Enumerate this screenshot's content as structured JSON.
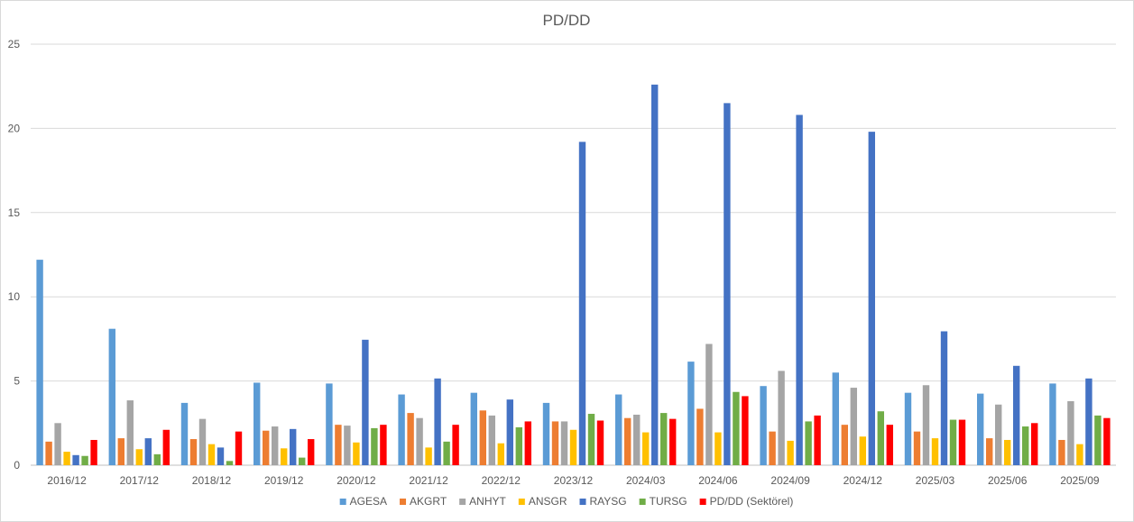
{
  "chart_data": {
    "type": "bar",
    "title": "PD/DD",
    "xlabel": "",
    "ylabel": "",
    "ylim": [
      0,
      25
    ],
    "yticks": [
      "0",
      "5",
      "10",
      "15",
      "20",
      "25"
    ],
    "grid": true,
    "legend_position": "bottom",
    "categories": [
      "2016/12",
      "2017/12",
      "2018/12",
      "2019/12",
      "2020/12",
      "2021/12",
      "2022/12",
      "2023/12",
      "2024/03",
      "2024/06",
      "2024/09",
      "2024/12",
      "2025/03",
      "2025/06",
      "2025/09"
    ],
    "series": [
      {
        "name": "AGESA",
        "color": "#5b9bd5",
        "values": [
          12.2,
          8.1,
          3.7,
          4.9,
          4.85,
          4.2,
          4.3,
          3.7,
          4.2,
          6.15,
          4.7,
          5.5,
          4.3,
          4.25,
          4.85
        ]
      },
      {
        "name": "AKGRT",
        "color": "#ed7d31",
        "values": [
          1.4,
          1.6,
          1.55,
          2.05,
          2.4,
          3.1,
          3.25,
          2.6,
          2.8,
          3.35,
          2.0,
          2.4,
          2.0,
          1.6,
          1.5
        ]
      },
      {
        "name": "ANHYT",
        "color": "#a5a5a5",
        "values": [
          2.5,
          3.85,
          2.75,
          2.3,
          2.35,
          2.8,
          2.95,
          2.6,
          3.0,
          7.2,
          5.6,
          4.6,
          4.75,
          3.6,
          3.8
        ]
      },
      {
        "name": "ANSGR",
        "color": "#ffc000",
        "values": [
          0.8,
          0.95,
          1.25,
          1.0,
          1.35,
          1.05,
          1.3,
          2.1,
          1.95,
          1.95,
          1.45,
          1.7,
          1.6,
          1.5,
          1.25
        ]
      },
      {
        "name": "RAYSG",
        "color": "#4472c4",
        "values": [
          0.6,
          1.6,
          1.05,
          2.15,
          7.45,
          5.15,
          3.9,
          19.2,
          22.6,
          21.5,
          20.8,
          19.8,
          7.95,
          5.9,
          5.15
        ]
      },
      {
        "name": "TURSG",
        "color": "#70ad47",
        "values": [
          0.55,
          0.65,
          0.25,
          0.45,
          2.2,
          1.4,
          2.25,
          3.05,
          3.1,
          4.35,
          2.6,
          3.2,
          2.7,
          2.3,
          2.95
        ]
      },
      {
        "name": "PD/DD (Sektörel)",
        "color": "#ff0000",
        "values": [
          1.5,
          2.1,
          2.0,
          1.55,
          2.4,
          2.4,
          2.6,
          2.65,
          2.75,
          4.1,
          2.95,
          2.4,
          2.7,
          2.5,
          2.8
        ]
      }
    ]
  }
}
